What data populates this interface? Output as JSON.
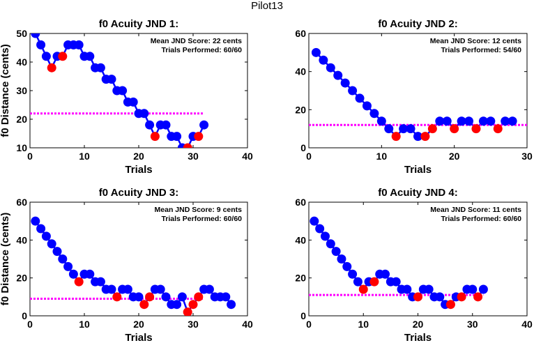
{
  "figure_title": "Pilot13",
  "chart_data": [
    {
      "type": "scatter",
      "title": "f0 Acuity JND 1:",
      "xlabel": "Trials",
      "ylabel": "f0 Distance (cents)",
      "xlim": [
        0,
        40
      ],
      "ylim": [
        10,
        50
      ],
      "xticks": [
        0,
        10,
        20,
        30,
        40
      ],
      "yticks": [
        10,
        20,
        30,
        40,
        50
      ],
      "annotations": [
        "Mean JND Score: 22 cents",
        "Trials Performed: 60/60"
      ],
      "mean_jnd": 22,
      "series": [
        {
          "color": "#0000ff",
          "role": "trial",
          "x": [
            1,
            2,
            3,
            4,
            5,
            6,
            7,
            8,
            9,
            10,
            11,
            12,
            13,
            14,
            15,
            16,
            17,
            18,
            19,
            20,
            21,
            22,
            23,
            24,
            25,
            26,
            27,
            28,
            29,
            30,
            31,
            32
          ],
          "y": [
            50,
            46,
            42,
            38,
            42,
            42,
            46,
            46,
            46,
            42,
            42,
            38,
            38,
            34,
            34,
            30,
            30,
            26,
            26,
            22,
            22,
            18,
            14,
            18,
            18,
            14,
            14,
            10,
            10,
            14,
            14,
            18
          ]
        },
        {
          "color": "#ff0000",
          "role": "reversal",
          "x": [
            4,
            6,
            23,
            29,
            31
          ],
          "y": [
            38,
            42,
            14,
            10,
            14
          ]
        }
      ]
    },
    {
      "type": "scatter",
      "title": "f0 Acuity JND 2:",
      "xlabel": "Trials",
      "ylabel": "",
      "xlim": [
        0,
        30
      ],
      "ylim": [
        0,
        60
      ],
      "xticks": [
        0,
        10,
        20,
        30
      ],
      "yticks": [
        0,
        20,
        40,
        60
      ],
      "annotations": [
        "Mean JND Score: 12 cents",
        "Trials Performed: 54/60"
      ],
      "mean_jnd": 12,
      "series": [
        {
          "color": "#0000ff",
          "role": "trial",
          "x": [
            1,
            2,
            3,
            4,
            5,
            6,
            7,
            8,
            9,
            10,
            11,
            12,
            13,
            14,
            15,
            16,
            17,
            18,
            19,
            20,
            21,
            22,
            23,
            24,
            25,
            26,
            27,
            28
          ],
          "y": [
            50,
            46,
            42,
            38,
            34,
            30,
            26,
            22,
            18,
            14,
            10,
            6,
            10,
            10,
            6,
            6,
            10,
            14,
            14,
            10,
            14,
            14,
            10,
            14,
            14,
            10,
            14,
            14
          ]
        },
        {
          "color": "#ff0000",
          "role": "reversal",
          "x": [
            12,
            16,
            17,
            20,
            23,
            26
          ],
          "y": [
            6,
            6,
            10,
            10,
            10,
            10
          ]
        }
      ]
    },
    {
      "type": "scatter",
      "title": "f0 Acuity JND 3:",
      "xlabel": "Trials",
      "ylabel": "f0 Distance (cents)",
      "xlim": [
        0,
        40
      ],
      "ylim": [
        0,
        60
      ],
      "xticks": [
        0,
        10,
        20,
        30,
        40
      ],
      "yticks": [
        0,
        20,
        40,
        60
      ],
      "annotations": [
        "Mean JND Score: 9 cents",
        "Trials Performed: 60/60"
      ],
      "mean_jnd": 9,
      "series": [
        {
          "color": "#0000ff",
          "role": "trial",
          "x": [
            1,
            2,
            3,
            4,
            5,
            6,
            7,
            8,
            9,
            10,
            11,
            12,
            13,
            14,
            15,
            16,
            17,
            18,
            19,
            20,
            21,
            22,
            23,
            24,
            25,
            26,
            27,
            28,
            29,
            30,
            31,
            32,
            33,
            34,
            35,
            36,
            37
          ],
          "y": [
            50,
            46,
            42,
            38,
            34,
            30,
            26,
            22,
            18,
            22,
            22,
            18,
            18,
            14,
            14,
            10,
            14,
            14,
            10,
            10,
            6,
            10,
            14,
            14,
            10,
            6,
            6,
            10,
            2,
            6,
            10,
            14,
            14,
            10,
            10,
            10,
            6
          ]
        },
        {
          "color": "#ff0000",
          "role": "reversal",
          "x": [
            9,
            16,
            21,
            22,
            29,
            30,
            31
          ],
          "y": [
            18,
            10,
            6,
            10,
            2,
            6,
            10
          ]
        }
      ]
    },
    {
      "type": "scatter",
      "title": "f0 Acuity JND 4:",
      "xlabel": "Trials",
      "ylabel": "",
      "xlim": [
        0,
        40
      ],
      "ylim": [
        0,
        60
      ],
      "xticks": [
        0,
        10,
        20,
        30,
        40
      ],
      "yticks": [
        0,
        20,
        40,
        60
      ],
      "annotations": [
        "Mean JND Score: 11 cents",
        "Trials Performed: 60/60"
      ],
      "mean_jnd": 11,
      "series": [
        {
          "color": "#0000ff",
          "role": "trial",
          "x": [
            1,
            2,
            3,
            4,
            5,
            6,
            7,
            8,
            9,
            10,
            11,
            12,
            13,
            14,
            15,
            16,
            17,
            18,
            19,
            20,
            21,
            22,
            23,
            24,
            25,
            26,
            27,
            28,
            29,
            30,
            31,
            32
          ],
          "y": [
            50,
            46,
            42,
            38,
            34,
            30,
            26,
            22,
            18,
            14,
            18,
            18,
            22,
            22,
            18,
            18,
            14,
            14,
            10,
            10,
            14,
            14,
            10,
            10,
            6,
            6,
            10,
            10,
            14,
            14,
            10,
            14
          ]
        },
        {
          "color": "#ff0000",
          "role": "reversal",
          "x": [
            10,
            12,
            20,
            26,
            28,
            31
          ],
          "y": [
            14,
            18,
            10,
            6,
            10,
            10
          ]
        }
      ]
    }
  ]
}
